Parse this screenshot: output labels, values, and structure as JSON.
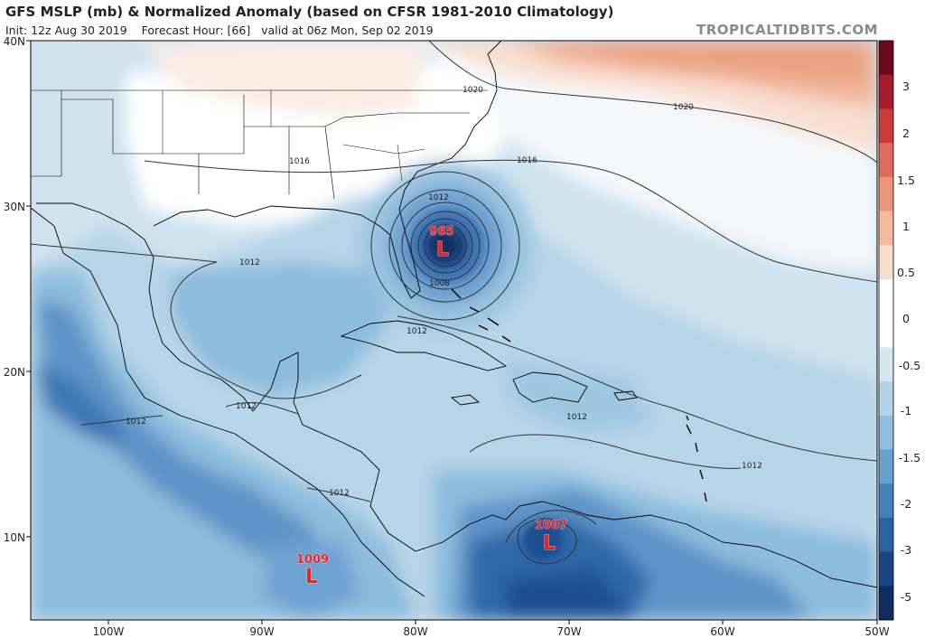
{
  "header": {
    "title": "GFS MSLP (mb) & Normalized Anomaly (based on CFSR 1981-2010 Climatology)",
    "subtitle_init": "Init: 12z Aug 30 2019",
    "subtitle_fhour": "Forecast Hour: [66]",
    "subtitle_valid": "valid at 06z Mon, Sep 02 2019",
    "credit": "TROPICALTIDBITS.COM"
  },
  "axes": {
    "lat_labels": [
      "40N",
      "30N",
      "20N",
      "10N"
    ],
    "lon_labels": [
      "100W",
      "90W",
      "80W",
      "70W",
      "60W",
      "50W"
    ]
  },
  "colorbar": {
    "labels": [
      "3",
      "2",
      "1.5",
      "1",
      "0.5",
      "0",
      "-0.5",
      "-1",
      "-1.5",
      "-2",
      "-3",
      "-5"
    ],
    "colors": [
      "#6b0a1e",
      "#a51d2d",
      "#cc3b3b",
      "#e06a5c",
      "#ec9478",
      "#f4b99e",
      "#f8dccd",
      "#ffffff",
      "#ffffff",
      "#d5e6f1",
      "#b4d3e8",
      "#8fbfde",
      "#679fcd",
      "#4680bd",
      "#2b62a6",
      "#1a4488",
      "#102c61"
    ]
  },
  "pressure_centers": [
    {
      "value": "965",
      "letter": "L"
    },
    {
      "value": "1007",
      "letter": "L"
    },
    {
      "value": "1009",
      "letter": "L"
    }
  ],
  "isobar_labels": [
    "1020",
    "1020",
    "1016",
    "1016",
    "1012",
    "1012",
    "1012",
    "1012",
    "1012",
    "1012",
    "1012",
    "1012",
    "1008"
  ],
  "colors": {
    "low_marker": "#e8232a",
    "isobar": "#333333",
    "coast": "#000000"
  }
}
